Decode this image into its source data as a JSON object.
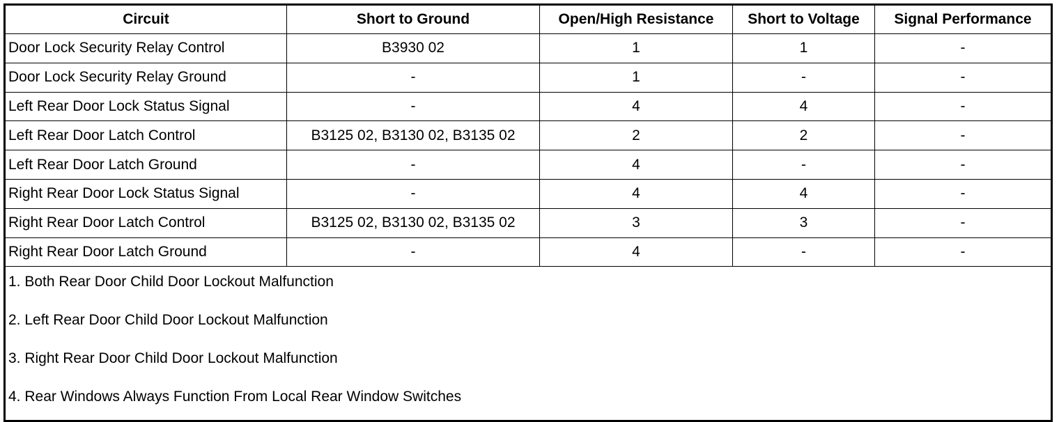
{
  "table": {
    "headers": [
      "Circuit",
      "Short to Ground",
      "Open/High Resistance",
      "Short to Voltage",
      "Signal Performance"
    ],
    "rows": [
      [
        "Door Lock Security Relay Control",
        "B3930 02",
        "1",
        "1",
        "-"
      ],
      [
        "Door Lock Security Relay Ground",
        "-",
        "1",
        "-",
        "-"
      ],
      [
        "Left Rear Door Lock Status Signal",
        "-",
        "4",
        "4",
        "-"
      ],
      [
        "Left Rear Door Latch Control",
        "B3125 02, B3130 02, B3135 02",
        "2",
        "2",
        "-"
      ],
      [
        "Left Rear Door Latch Ground",
        "-",
        "4",
        "-",
        "-"
      ],
      [
        "Right Rear Door Lock Status Signal",
        "-",
        "4",
        "4",
        "-"
      ],
      [
        "Right Rear Door Latch Control",
        "B3125 02, B3130 02, B3135 02",
        "3",
        "3",
        "-"
      ],
      [
        "Right Rear Door Latch Ground",
        "-",
        "4",
        "-",
        "-"
      ]
    ],
    "notes": [
      "1. Both Rear Door Child Door Lockout Malfunction",
      "2. Left Rear Door Child Door Lockout Malfunction",
      "3. Right Rear Door Child Door Lockout Malfunction",
      "4. Rear Windows Always Function From Local Rear Window Switches"
    ]
  }
}
